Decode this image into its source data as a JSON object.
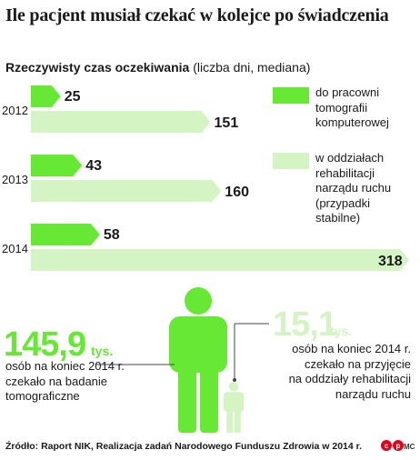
{
  "title": "Ile pacjent musiał czekać w kolejce po świadczenia",
  "subtitle": {
    "bold": "Rzeczywisty czas oczekiwania",
    "rest": " (liczba dni, mediana)"
  },
  "colors": {
    "dark_green": "#66e834",
    "light_green": "#d4f4c4",
    "text": "#1a1a1a",
    "red": "#e2001a"
  },
  "chart_data": {
    "type": "bar",
    "orientation": "horizontal",
    "categories": [
      "2012",
      "2013",
      "2014"
    ],
    "series": [
      {
        "name": "do pracowni tomografii komputerowej",
        "values": [
          25,
          43,
          58
        ],
        "color": "#66e834"
      },
      {
        "name": "w oddziałach rehabilitacji narządu ruchu (przypadki stabilne)",
        "values": [
          151,
          160,
          318
        ],
        "color": "#d4f4c4"
      }
    ],
    "value_labels": {
      "s0": [
        "25",
        "43",
        "58"
      ],
      "s1": [
        "151",
        "160",
        "318"
      ]
    },
    "title": "Rzeczywisty czas oczekiwania",
    "ylabel": "",
    "xlabel": "",
    "grid": false
  },
  "legend": [
    {
      "text": [
        "do pracowni",
        "tomografii",
        "komputerowej"
      ],
      "color": "#66e834"
    },
    {
      "text": [
        "w oddziałach",
        "rehabilitacji",
        "narządu ruchu",
        "(przypadki",
        "stabilne)"
      ],
      "color": "#d4f4c4"
    }
  ],
  "stat_left": {
    "number": "145,9",
    "unit": "tys.",
    "lines": [
      "osób na koniec 2014 r.",
      "czekało na badanie",
      "tomograficzne"
    ]
  },
  "stat_right": {
    "number": "15,1",
    "unit": "tys.",
    "lines": [
      "osób na koniec 2014 r.",
      "czekało na przyjęcie",
      "na oddziały rehabilitacji",
      "narządu ruchu"
    ]
  },
  "people": {
    "left_value": 145.9,
    "right_value": 15.1
  },
  "source": "Źródło: Raport NIK, Realizacja zadań Narodowego Funduszu Zdrowia w 2014 r.",
  "credit": "MC"
}
